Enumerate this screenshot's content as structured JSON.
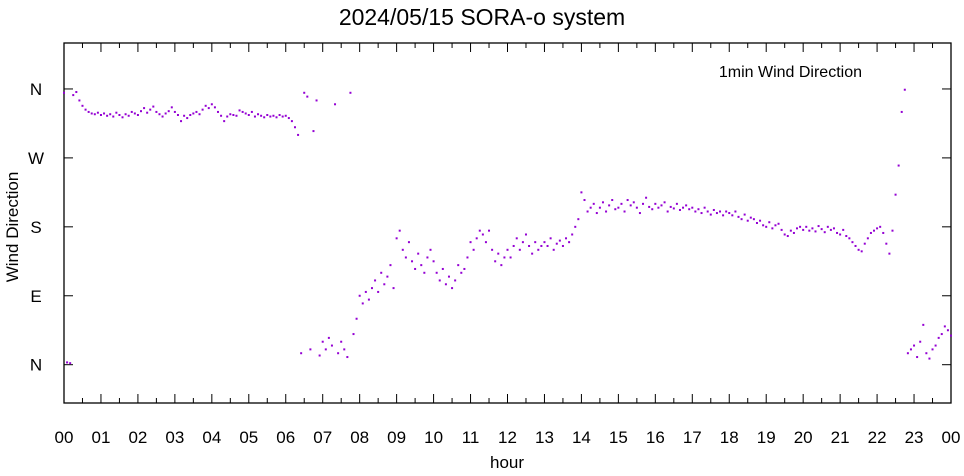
{
  "chart_data": {
    "type": "scatter",
    "title": "2024/05/15 SORA-o system",
    "xlabel": "hour",
    "ylabel": "Wind Direction",
    "xlim": [
      0,
      24
    ],
    "ylim": [
      -50,
      420
    ],
    "x_tick_labels": [
      "00",
      "01",
      "02",
      "03",
      "04",
      "05",
      "06",
      "07",
      "08",
      "09",
      "10",
      "11",
      "12",
      "13",
      "14",
      "15",
      "16",
      "17",
      "18",
      "19",
      "20",
      "21",
      "22",
      "23",
      "00"
    ],
    "y_ticks": [
      {
        "value": 0,
        "label": "N"
      },
      {
        "value": 90,
        "label": "E"
      },
      {
        "value": 180,
        "label": "S"
      },
      {
        "value": 270,
        "label": "W"
      },
      {
        "value": 360,
        "label": "N"
      }
    ],
    "grid": false,
    "legend": {
      "placement": "top-right",
      "entries": [
        "1min Wind Direction"
      ]
    },
    "series": [
      {
        "name": "1min Wind Direction",
        "color": "#9400d3",
        "x_step_minutes": 5,
        "values_deg": [
          355,
          3,
          2,
          352,
          356,
          345,
          338,
          333,
          330,
          328,
          327,
          329,
          326,
          328,
          325,
          327,
          324,
          329,
          326,
          323,
          327,
          325,
          330,
          328,
          326,
          331,
          335,
          329,
          333,
          337,
          330,
          327,
          324,
          328,
          331,
          336,
          330,
          326,
          318,
          325,
          322,
          326,
          328,
          330,
          327,
          333,
          338,
          335,
          340,
          336,
          330,
          325,
          318,
          324,
          327,
          326,
          325,
          332,
          330,
          328,
          326,
          330,
          324,
          327,
          325,
          323,
          326,
          324,
          325,
          323,
          326,
          324,
          325,
          322,
          318,
          310,
          300,
          15,
          355,
          350,
          20,
          305,
          345,
          12,
          30,
          20,
          35,
          25,
          340,
          15,
          30,
          20,
          10,
          355,
          40,
          60,
          90,
          80,
          95,
          85,
          100,
          110,
          95,
          120,
          105,
          115,
          130,
          100,
          165,
          175,
          150,
          140,
          160,
          135,
          125,
          145,
          130,
          120,
          140,
          150,
          135,
          120,
          110,
          125,
          105,
          115,
          100,
          110,
          130,
          120,
          125,
          140,
          160,
          150,
          165,
          175,
          170,
          160,
          175,
          150,
          135,
          145,
          130,
          140,
          150,
          140,
          155,
          165,
          150,
          160,
          170,
          155,
          145,
          160,
          150,
          155,
          160,
          155,
          165,
          150,
          158,
          162,
          155,
          165,
          160,
          170,
          180,
          190,
          225,
          215,
          200,
          205,
          210,
          198,
          205,
          212,
          200,
          208,
          215,
          203,
          205,
          210,
          200,
          215,
          208,
          212,
          205,
          198,
          210,
          218,
          206,
          203,
          210,
          205,
          208,
          212,
          200,
          206,
          204,
          210,
          202,
          205,
          208,
          203,
          205,
          200,
          203,
          198,
          205,
          200,
          196,
          202,
          198,
          200,
          195,
          200,
          198,
          195,
          200,
          193,
          190,
          196,
          188,
          192,
          190,
          185,
          188,
          182,
          180,
          186,
          178,
          182,
          184,
          176,
          170,
          168,
          175,
          172,
          178,
          180,
          176,
          180,
          175,
          178,
          174,
          181,
          177,
          173,
          180,
          176,
          178,
          172,
          170,
          176,
          168,
          165,
          160,
          155,
          150,
          148,
          158,
          165,
          172,
          175,
          178,
          180,
          172,
          158,
          145,
          175,
          222,
          260,
          330,
          359,
          15,
          20,
          25,
          10,
          30,
          52,
          15,
          8,
          20,
          25,
          35,
          40,
          50,
          45,
          38
        ]
      }
    ]
  }
}
